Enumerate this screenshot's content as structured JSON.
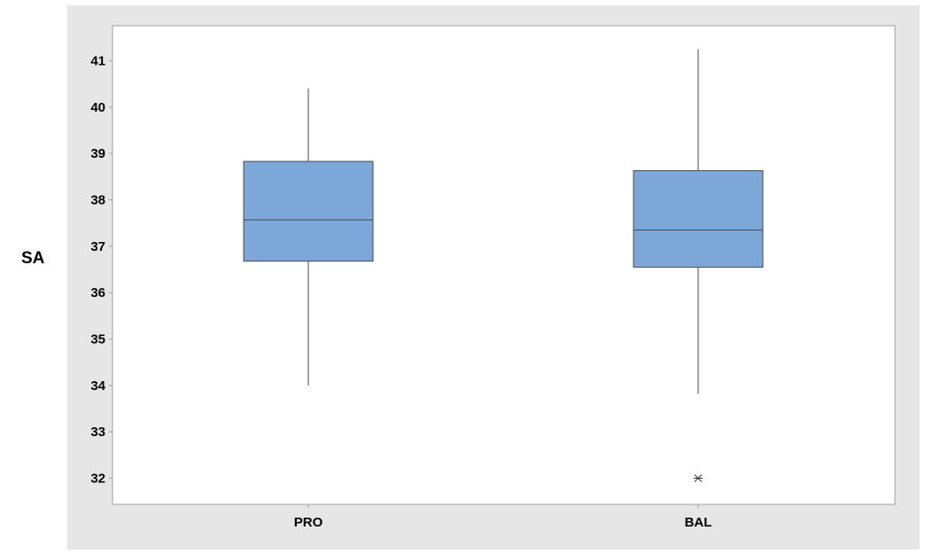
{
  "colors": {
    "figure_background": "#e6e6e6",
    "plot_background": "#ffffff",
    "box_fill": "#7ba7d9",
    "box_stroke": "#4a4a4a",
    "whisker": "#4a4a4a",
    "frame": "#a0a0a0"
  },
  "chart_data": {
    "type": "boxplot",
    "ylabel": "SA",
    "xlabel": "",
    "ylim": [
      31.5,
      41.5
    ],
    "yticks": [
      32,
      33,
      34,
      35,
      36,
      37,
      38,
      39,
      40,
      41
    ],
    "grid": false,
    "categories": [
      "PRO",
      "BAL"
    ],
    "boxes": [
      {
        "category": "PRO",
        "whisker_low": 34.0,
        "q1": 36.68,
        "median": 37.57,
        "q3": 38.83,
        "whisker_high": 40.4,
        "outliers": []
      },
      {
        "category": "BAL",
        "whisker_low": 33.82,
        "q1": 36.55,
        "median": 37.35,
        "q3": 38.63,
        "whisker_high": 41.25,
        "outliers": [
          32.0
        ]
      }
    ]
  }
}
